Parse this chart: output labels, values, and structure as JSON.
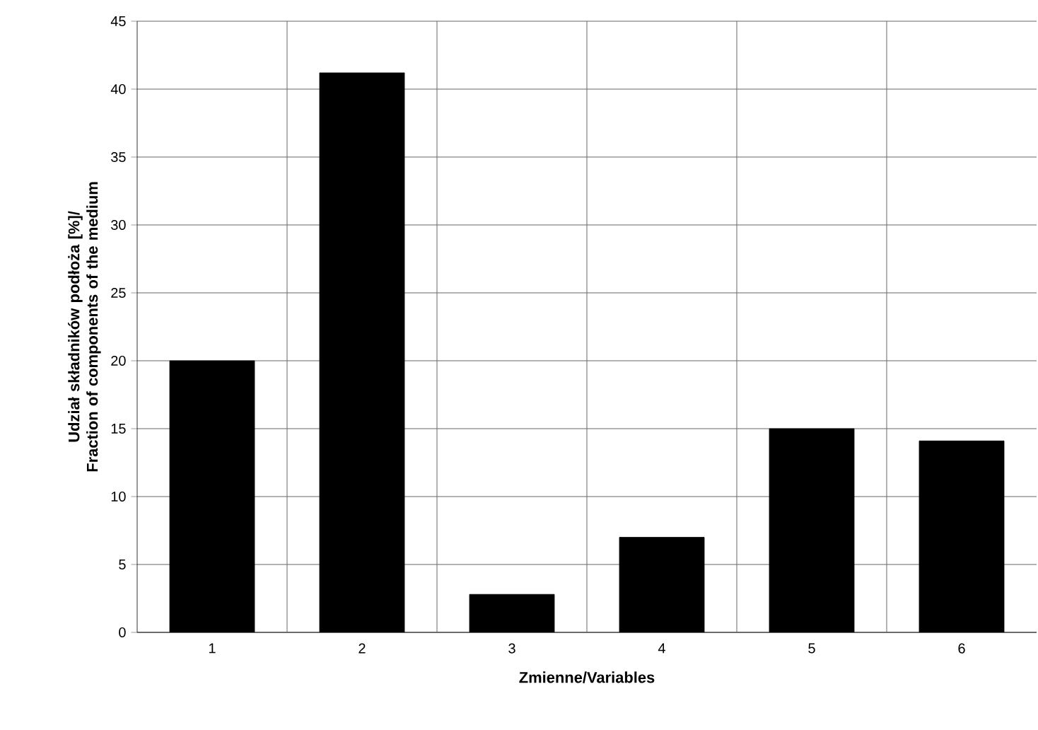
{
  "chart_data": {
    "type": "bar",
    "xlabel": "Zmienne/Variables",
    "ylabel": "Udział składników podłoża [%]/ Fraction of components of the medium",
    "categories": [
      "1",
      "2",
      "3",
      "4",
      "5",
      "6"
    ],
    "values": [
      20,
      41.2,
      2.8,
      7,
      15,
      14.1
    ],
    "color": "#000000",
    "ylim": [
      0,
      45
    ],
    "yticks": [
      0,
      5,
      10,
      15,
      20,
      25,
      30,
      35,
      40,
      45
    ],
    "grid": true
  }
}
